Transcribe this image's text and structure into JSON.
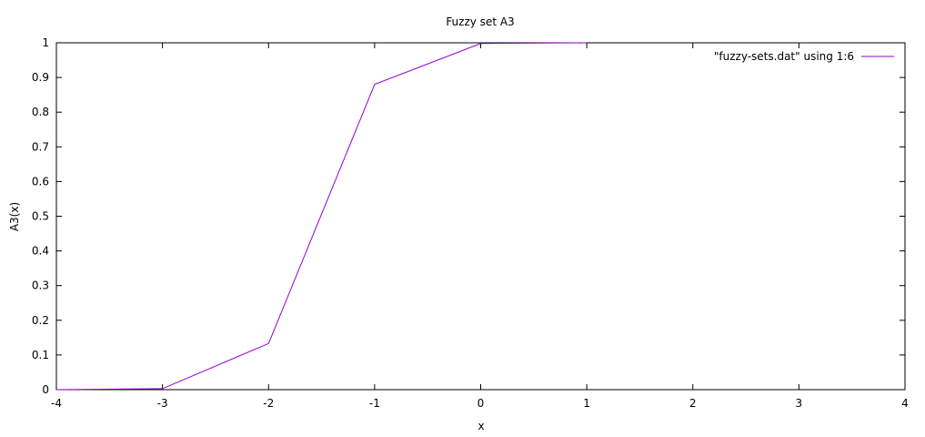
{
  "chart_data": {
    "type": "line",
    "title": "Fuzzy set A3",
    "xlabel": "x",
    "ylabel": "A3(x)",
    "xlim": [
      -4,
      4
    ],
    "ylim": [
      0,
      1
    ],
    "x_ticks": [
      "-4",
      "-3",
      "-2",
      "-1",
      "0",
      "1",
      "2",
      "3",
      "4"
    ],
    "y_ticks": [
      "0",
      "0.1",
      "0.2",
      "0.3",
      "0.4",
      "0.5",
      "0.6",
      "0.7",
      "0.8",
      "0.9",
      "1"
    ],
    "grid": false,
    "legend_position": "top-right",
    "series": [
      {
        "name": "\"fuzzy-sets.dat\" using 1:6",
        "color": "#9400d3",
        "x": [
          -4,
          -3,
          -2,
          -1,
          0,
          1
        ],
        "y": [
          0.0,
          0.003,
          0.133,
          0.88,
          0.998,
          1.0
        ]
      }
    ]
  }
}
